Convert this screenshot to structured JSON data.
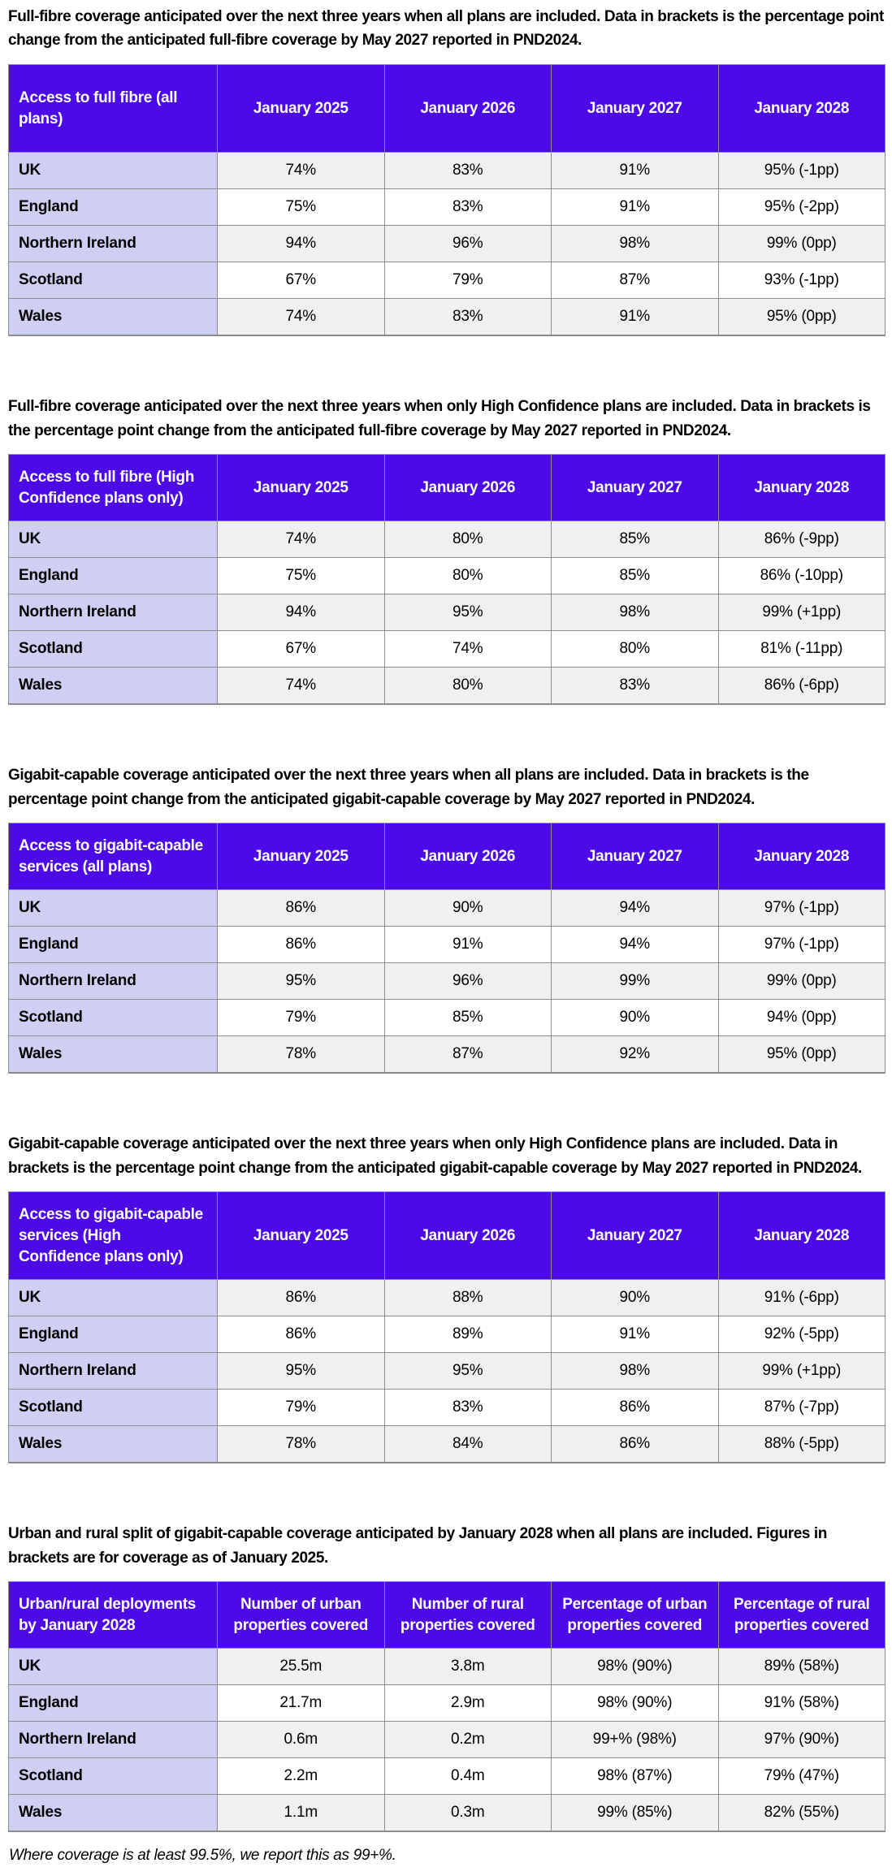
{
  "theme": {
    "header_bg": "#4B0AE6",
    "label_bg": "#CFCEF3",
    "stripe": "#F0F0F0",
    "border": "#8C8C8C",
    "header_text": "#FFFFFF"
  },
  "footnote": "Where coverage is at least 99.5%, we report this as 99+%.",
  "tables": [
    {
      "title": "Full-fibre coverage anticipated over the next three years when all plans are included. Data in brackets is the percentage point change from the anticipated full-fibre coverage by May 2027 reported in PND2024.",
      "header": [
        "Access to full fibre (all plans)",
        "January 2025",
        "January 2026",
        "January 2027",
        "January 2028"
      ],
      "rows": [
        {
          "label": "UK",
          "values": [
            "74%",
            "83%",
            "91%",
            "95% (-1pp)"
          ]
        },
        {
          "label": "England",
          "values": [
            "75%",
            "83%",
            "91%",
            "95% (-2pp)"
          ]
        },
        {
          "label": "Northern Ireland",
          "values": [
            "94%",
            "96%",
            "98%",
            "99% (0pp)"
          ]
        },
        {
          "label": "Scotland",
          "values": [
            "67%",
            "79%",
            "87%",
            "93% (-1pp)"
          ]
        },
        {
          "label": "Wales",
          "values": [
            "74%",
            "83%",
            "91%",
            "95% (0pp)"
          ]
        }
      ]
    },
    {
      "title": "Full-fibre coverage anticipated over the next three years when only High Confidence plans are included. Data in brackets is the percentage point change from the anticipated full-fibre coverage by May 2027 reported in PND2024.",
      "header": [
        "Access to full fibre (High Confidence plans only)",
        "January 2025",
        "January 2026",
        "January 2027",
        "January 2028"
      ],
      "rows": [
        {
          "label": "UK",
          "values": [
            "74%",
            "80%",
            "85%",
            "86% (-9pp)"
          ]
        },
        {
          "label": "England",
          "values": [
            "75%",
            "80%",
            "85%",
            "86% (-10pp)"
          ]
        },
        {
          "label": "Northern Ireland",
          "values": [
            "94%",
            "95%",
            "98%",
            "99% (+1pp)"
          ]
        },
        {
          "label": "Scotland",
          "values": [
            "67%",
            "74%",
            "80%",
            "81% (-11pp)"
          ]
        },
        {
          "label": "Wales",
          "values": [
            "74%",
            "80%",
            "83%",
            "86% (-6pp)"
          ]
        }
      ]
    },
    {
      "title": "Gigabit-capable coverage anticipated over the next three years when all plans are included. Data in brackets is the percentage point change from the anticipated gigabit-capable coverage by May 2027 reported in PND2024.",
      "header": [
        "Access to gigabit-capable services (all plans)",
        "January 2025",
        "January 2026",
        "January 2027",
        "January 2028"
      ],
      "rows": [
        {
          "label": "UK",
          "values": [
            "86%",
            "90%",
            "94%",
            "97% (-1pp)"
          ]
        },
        {
          "label": "England",
          "values": [
            "86%",
            "91%",
            "94%",
            "97% (-1pp)"
          ]
        },
        {
          "label": "Northern Ireland",
          "values": [
            "95%",
            "96%",
            "99%",
            "99% (0pp)"
          ]
        },
        {
          "label": "Scotland",
          "values": [
            "79%",
            "85%",
            "90%",
            "94% (0pp)"
          ]
        },
        {
          "label": "Wales",
          "values": [
            "78%",
            "87%",
            "92%",
            "95% (0pp)"
          ]
        }
      ]
    },
    {
      "title": "Gigabit-capable coverage anticipated over the next three years when only High Confidence plans are included. Data in brackets is the percentage point change from the anticipated gigabit-capable coverage by May 2027 reported in PND2024.",
      "header": [
        "Access to gigabit-capable services (High Confidence plans only)",
        "January 2025",
        "January 2026",
        "January 2027",
        "January 2028"
      ],
      "rows": [
        {
          "label": "UK",
          "values": [
            "86%",
            "88%",
            "90%",
            "91% (-6pp)"
          ]
        },
        {
          "label": "England",
          "values": [
            "86%",
            "89%",
            "91%",
            "92% (-5pp)"
          ]
        },
        {
          "label": "Northern Ireland",
          "values": [
            "95%",
            "95%",
            "98%",
            "99% (+1pp)"
          ]
        },
        {
          "label": "Scotland",
          "values": [
            "79%",
            "83%",
            "86%",
            "87% (-7pp)"
          ]
        },
        {
          "label": "Wales",
          "values": [
            "78%",
            "84%",
            "86%",
            "88% (-5pp)"
          ]
        }
      ]
    },
    {
      "title": "Urban and rural split of gigabit-capable coverage anticipated by January 2028 when all plans are included. Figures in brackets are for coverage as of January 2025.",
      "header": [
        "Urban/rural deployments by January 2028",
        "Number of urban properties covered",
        "Number of rural properties covered",
        "Percentage of urban properties covered",
        "Percentage of rural properties covered"
      ],
      "rows": [
        {
          "label": "UK",
          "values": [
            "25.5m",
            "3.8m",
            "98% (90%)",
            "89% (58%)"
          ]
        },
        {
          "label": "England",
          "values": [
            "21.7m",
            "2.9m",
            "98% (90%)",
            "91% (58%)"
          ]
        },
        {
          "label": "Northern Ireland",
          "values": [
            "0.6m",
            "0.2m",
            "99+% (98%)",
            "97% (90%)"
          ]
        },
        {
          "label": "Scotland",
          "values": [
            "2.2m",
            "0.4m",
            "98% (87%)",
            "79% (47%)"
          ]
        },
        {
          "label": "Wales",
          "values": [
            "1.1m",
            "0.3m",
            "99% (85%)",
            "82% (55%)"
          ]
        }
      ]
    }
  ]
}
